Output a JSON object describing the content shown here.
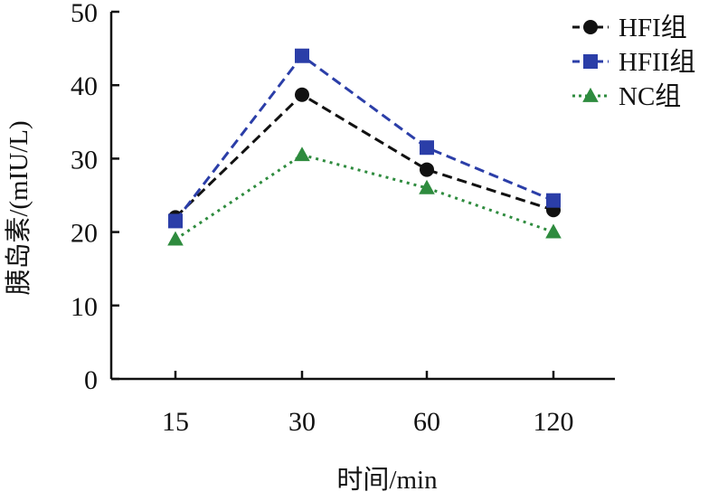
{
  "chart_data": {
    "type": "line",
    "categories": [
      "15",
      "30",
      "60",
      "120"
    ],
    "xlabel": "时间/min",
    "ylabel": "胰岛素/(mIU/L)",
    "ylim": [
      0,
      50
    ],
    "yticks": [
      "0",
      "10",
      "20",
      "30",
      "40",
      "50"
    ],
    "grid": false,
    "legend_position": "top-right",
    "series": [
      {
        "name": "HFI组",
        "values": [
          22,
          38.7,
          28.5,
          23
        ],
        "color": "#111111",
        "marker": "circle",
        "line": "dashed"
      },
      {
        "name": "HFII组",
        "values": [
          21.5,
          44,
          31.5,
          24.3
        ],
        "color": "#2b3ea8",
        "marker": "square",
        "line": "dashed"
      },
      {
        "name": "NC组",
        "values": [
          19,
          30.5,
          26,
          20
        ],
        "color": "#2e8b3e",
        "marker": "triangle",
        "line": "dotted"
      }
    ]
  }
}
